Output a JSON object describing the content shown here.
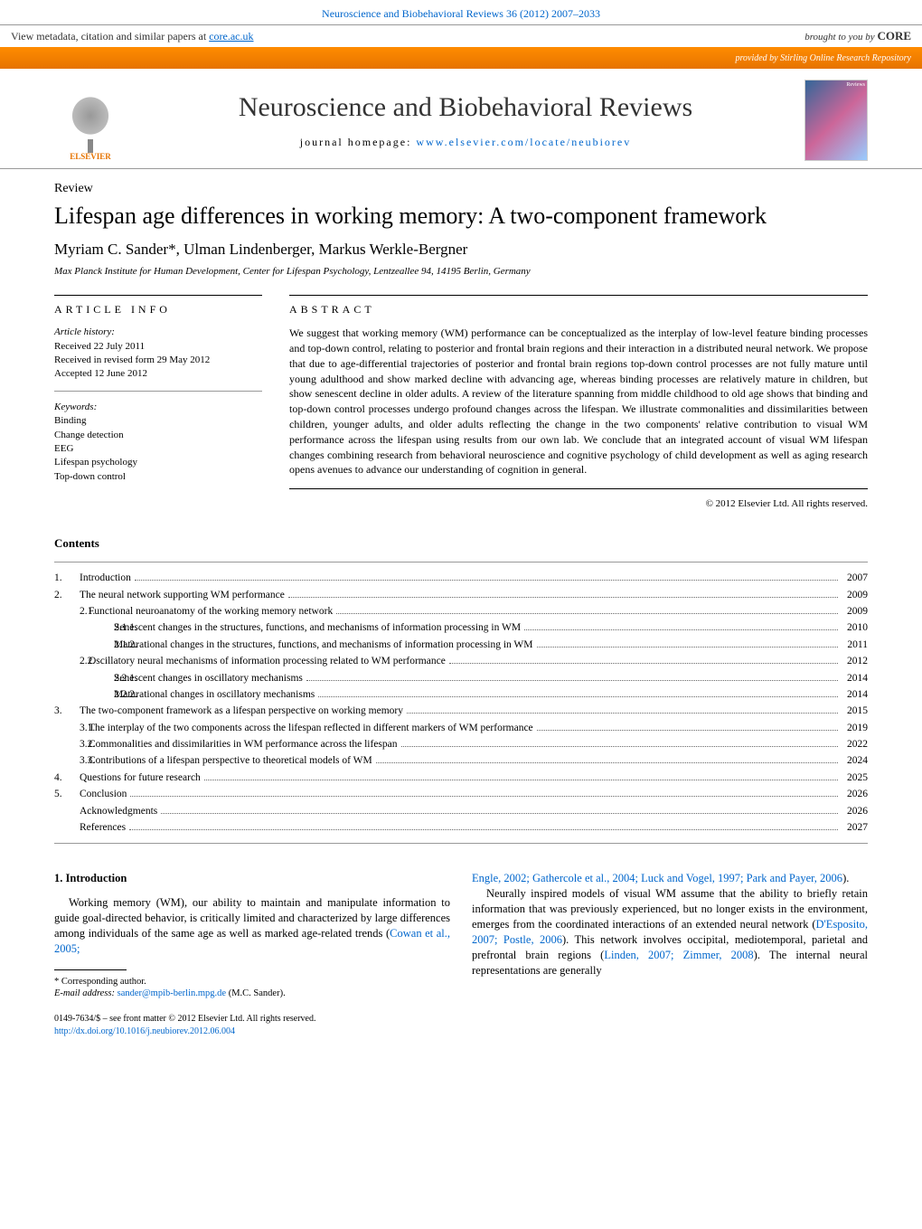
{
  "top": {
    "citation_line": "Neuroscience and Biobehavioral Reviews 36 (2012) 2007–2033",
    "metadata_prefix": "View metadata, citation and similar papers at ",
    "metadata_link": "core.ac.uk",
    "brought_prefix": "brought to you by ",
    "core_logo": "CORE",
    "provided_by_prefix": "provided by ",
    "provided_by": "Stirling Online Research Repository"
  },
  "journal": {
    "publisher": "ELSEVIER",
    "title": "Neuroscience and Biobehavioral Reviews",
    "homepage_label": "journal homepage: ",
    "homepage_url": "www.elsevier.com/locate/neubiorev",
    "cover_text": "Reviews"
  },
  "article": {
    "type": "Review",
    "title": "Lifespan age differences in working memory: A two-component framework",
    "authors": "Myriam C. Sander*, Ulman Lindenberger, Markus Werkle-Bergner",
    "affiliation": "Max Planck Institute for Human Development, Center for Lifespan Psychology, Lentzeallee 94, 14195 Berlin, Germany"
  },
  "info": {
    "heading": "ARTICLE INFO",
    "history_label": "Article history:",
    "received": "Received 22 July 2011",
    "revised": "Received in revised form 29 May 2012",
    "accepted": "Accepted 12 June 2012",
    "keywords_label": "Keywords:",
    "keywords": [
      "Binding",
      "Change detection",
      "EEG",
      "Lifespan psychology",
      "Top-down control"
    ]
  },
  "abstract": {
    "heading": "ABSTRACT",
    "text": "We suggest that working memory (WM) performance can be conceptualized as the interplay of low-level feature binding processes and top-down control, relating to posterior and frontal brain regions and their interaction in a distributed neural network. We propose that due to age-differential trajectories of posterior and frontal brain regions top-down control processes are not fully mature until young adulthood and show marked decline with advancing age, whereas binding processes are relatively mature in children, but show senescent decline in older adults. A review of the literature spanning from middle childhood to old age shows that binding and top-down control processes undergo profound changes across the lifespan. We illustrate commonalities and dissimilarities between children, younger adults, and older adults reflecting the change in the two components' relative contribution to visual WM performance across the lifespan using results from our own lab. We conclude that an integrated account of visual WM lifespan changes combining research from behavioral neuroscience and cognitive psychology of child development as well as aging research opens avenues to advance our understanding of cognition in general.",
    "copyright": "© 2012 Elsevier Ltd. All rights reserved."
  },
  "contents": {
    "heading": "Contents",
    "items": [
      {
        "n": "1.",
        "t": "Introduction",
        "p": "2007",
        "l": 0
      },
      {
        "n": "2.",
        "t": "The neural network supporting WM performance",
        "p": "2009",
        "l": 0
      },
      {
        "n": "2.1.",
        "t": "Functional neuroanatomy of the working memory network",
        "p": "2009",
        "l": 1
      },
      {
        "n": "2.1.1.",
        "t": "Senescent changes in the structures, functions, and mechanisms of information processing in WM",
        "p": "2010",
        "l": 2
      },
      {
        "n": "2.1.2.",
        "t": "Maturational changes in the structures, functions, and mechanisms of information processing in WM",
        "p": "2011",
        "l": 2
      },
      {
        "n": "2.2.",
        "t": "Oscillatory neural mechanisms of information processing related to WM performance",
        "p": "2012",
        "l": 1
      },
      {
        "n": "2.2.1.",
        "t": "Senescent changes in oscillatory mechanisms",
        "p": "2014",
        "l": 2
      },
      {
        "n": "2.2.2.",
        "t": "Maturational changes in oscillatory mechanisms",
        "p": "2014",
        "l": 2
      },
      {
        "n": "3.",
        "t": "The two-component framework as a lifespan perspective on working memory",
        "p": "2015",
        "l": 0
      },
      {
        "n": "3.1.",
        "t": "The interplay of the two components across the lifespan reflected in different markers of WM performance",
        "p": "2019",
        "l": 1
      },
      {
        "n": "3.2.",
        "t": "Commonalities and dissimilarities in WM performance across the lifespan",
        "p": "2022",
        "l": 1
      },
      {
        "n": "3.3.",
        "t": "Contributions of a lifespan perspective to theoretical models of WM",
        "p": "2024",
        "l": 1
      },
      {
        "n": "4.",
        "t": "Questions for future research",
        "p": "2025",
        "l": 0
      },
      {
        "n": "5.",
        "t": "Conclusion",
        "p": "2026",
        "l": 0
      },
      {
        "n": "",
        "t": "Acknowledgments",
        "p": "2026",
        "l": 0
      },
      {
        "n": "",
        "t": "References",
        "p": "2027",
        "l": 0
      }
    ]
  },
  "body": {
    "section_num": "1.",
    "section_title": "Introduction",
    "col1_p1_a": "Working memory (WM), our ability to maintain and manipulate information to guide goal-directed behavior, is critically limited and characterized by large differences among individuals of the same age as well as marked age-related trends (",
    "col1_p1_cite": "Cowan et al., 2005;",
    "col2_cite1": "Engle, 2002; Gathercole et al., 2004; Luck and Vogel, 1997; Park and Payer, 2006",
    "col2_cite1_end": ").",
    "col2_p2_a": "Neurally inspired models of visual WM assume that the ability to briefly retain information that was previously experienced, but no longer exists in the environment, emerges from the coordinated interactions of an extended neural network (",
    "col2_p2_cite1": "D'Esposito, 2007; Postle, 2006",
    "col2_p2_b": "). This network involves occipital, mediotemporal, parietal and prefrontal brain regions (",
    "col2_p2_cite2": "Linden, 2007; Zimmer, 2008",
    "col2_p2_c": "). The internal neural representations are generally"
  },
  "footnote": {
    "corr": "* Corresponding author.",
    "email_label": "E-mail address: ",
    "email": "sander@mpib-berlin.mpg.de",
    "email_suffix": " (M.C. Sander)."
  },
  "bottom": {
    "issn": "0149-7634/$ – see front matter © 2012 Elsevier Ltd. All rights reserved.",
    "doi": "http://dx.doi.org/10.1016/j.neubiorev.2012.06.004"
  },
  "colors": {
    "link": "#0066cc",
    "orange": "#e67300"
  }
}
